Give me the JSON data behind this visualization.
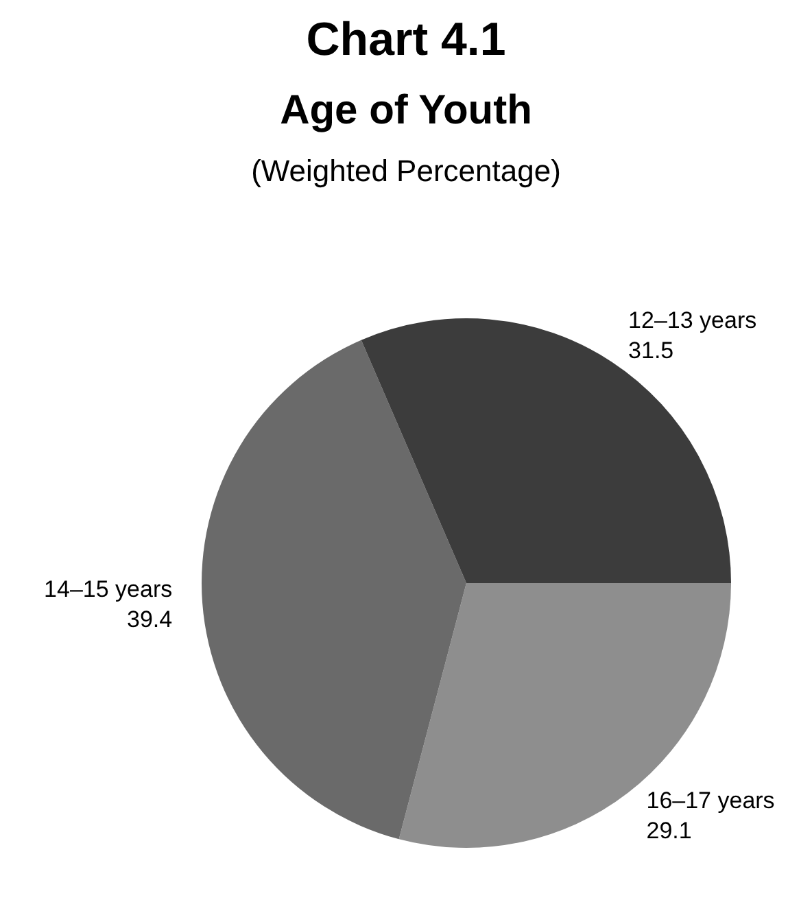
{
  "chart_data": {
    "type": "pie",
    "title": "Chart 4.1",
    "subtitle": "Age of Youth",
    "annotations": [
      "(Weighted Percentage)"
    ],
    "categories": [
      "12–13 years",
      "14–15 years",
      "16–17 years"
    ],
    "values": [
      31.5,
      39.4,
      29.1
    ],
    "colors": [
      "#3c3c3c",
      "#6a6a6a",
      "#8e8e8e"
    ],
    "data_labels": true
  }
}
